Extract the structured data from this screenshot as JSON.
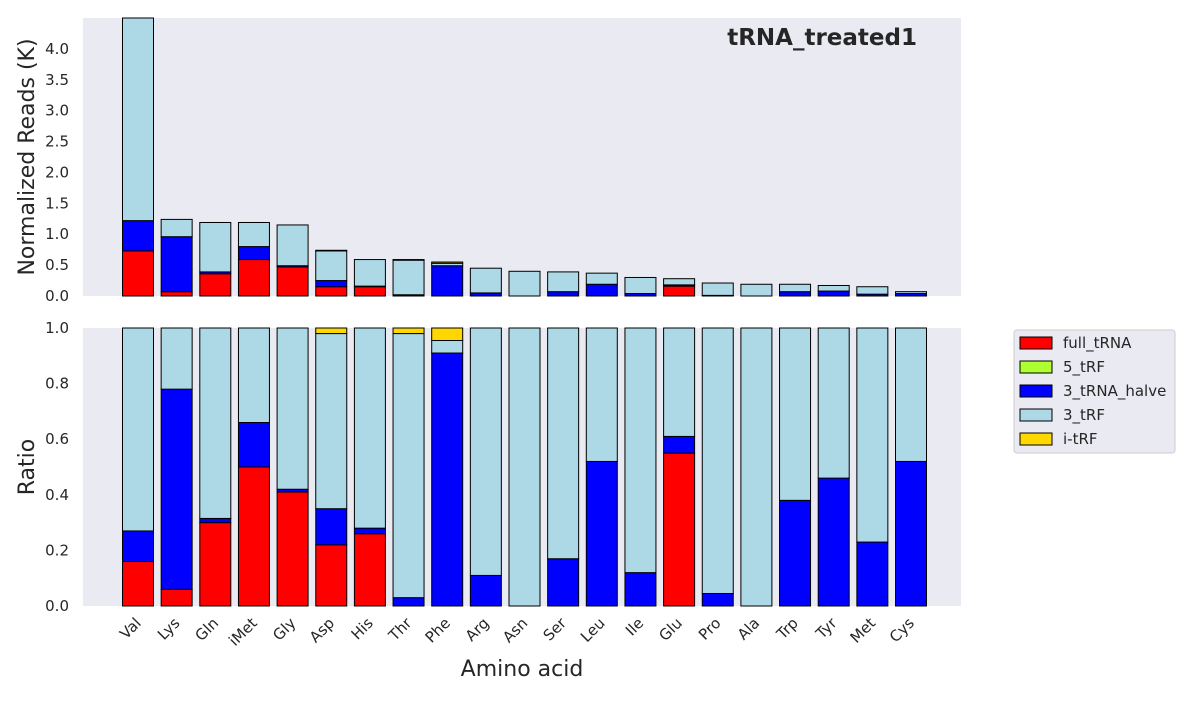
{
  "chart_data": {
    "type": "bar",
    "stacked": true,
    "title": "tRNA_treated1",
    "xlabel": "Amino acid",
    "categories": [
      "Val",
      "Lys",
      "Gln",
      "iMet",
      "Gly",
      "Asp",
      "His",
      "Thr",
      "Phe",
      "Arg",
      "Asn",
      "Ser",
      "Leu",
      "Ile",
      "Glu",
      "Pro",
      "Ala",
      "Trp",
      "Tyr",
      "Met",
      "Cys"
    ],
    "legend": {
      "placement": "outside-right",
      "entries": [
        "full_tRNA",
        "5_tRF",
        "3_tRNA_halve",
        "3_tRF",
        "i-tRF"
      ]
    },
    "colors": {
      "full_tRNA": "#ff0000",
      "5_tRF": "#adff2f",
      "3_tRNA_halve": "#0000ff",
      "3_tRF": "#add8e6",
      "i-tRF": "#ffd700",
      "panel_bg": "#eaeaf2"
    },
    "panels": [
      {
        "ylabel": "Normalized Reads (K)",
        "ylim": [
          0,
          4.5
        ],
        "yticks": [
          "0.0",
          "0.5",
          "1.0",
          "1.5",
          "2.0",
          "2.5",
          "3.0",
          "3.5",
          "4.0"
        ],
        "grid": false,
        "series": [
          {
            "name": "full_tRNA",
            "values": [
              0.73,
              0.07,
              0.36,
              0.59,
              0.47,
              0.15,
              0.15,
              0,
              0,
              0,
              0,
              0,
              0,
              0,
              0.16,
              0,
              0,
              0,
              0,
              0,
              0
            ]
          },
          {
            "name": "5_tRF",
            "values": [
              0,
              0,
              0,
              0,
              0,
              0,
              0,
              0,
              0,
              0,
              0,
              0,
              0,
              0,
              0,
              0,
              0,
              0,
              0,
              0,
              0
            ]
          },
          {
            "name": "3_tRNA_halve",
            "values": [
              0.49,
              0.89,
              0.03,
              0.21,
              0.02,
              0.1,
              0.01,
              0.02,
              0.49,
              0.05,
              0,
              0.07,
              0.19,
              0.04,
              0.02,
              0.01,
              0,
              0.07,
              0.08,
              0.03,
              0.04
            ]
          },
          {
            "name": "3_tRF",
            "values": [
              3.28,
              0.28,
              0.8,
              0.39,
              0.66,
              0.48,
              0.43,
              0.56,
              0.04,
              0.4,
              0.4,
              0.32,
              0.18,
              0.26,
              0.1,
              0.2,
              0.19,
              0.12,
              0.09,
              0.12,
              0.03
            ]
          },
          {
            "name": "i-tRF",
            "values": [
              0,
              0,
              0,
              0,
              0,
              0.01,
              0,
              0.01,
              0.02,
              0,
              0,
              0,
              0,
              0,
              0,
              0,
              0,
              0,
              0,
              0,
              0
            ]
          }
        ]
      },
      {
        "ylabel": "Ratio",
        "ylim": [
          0,
          1.0
        ],
        "yticks": [
          "0.0",
          "0.2",
          "0.4",
          "0.6",
          "0.8",
          "1.0"
        ],
        "grid": false,
        "series": [
          {
            "name": "full_tRNA",
            "values": [
              0.16,
              0.06,
              0.3,
              0.5,
              0.41,
              0.22,
              0.26,
              0,
              0,
              0,
              0,
              0,
              0,
              0,
              0.55,
              0,
              0,
              0,
              0,
              0,
              0
            ]
          },
          {
            "name": "5_tRF",
            "values": [
              0,
              0,
              0,
              0,
              0,
              0,
              0,
              0,
              0,
              0,
              0,
              0,
              0,
              0,
              0,
              0,
              0,
              0,
              0,
              0,
              0
            ]
          },
          {
            "name": "3_tRNA_halve",
            "values": [
              0.11,
              0.72,
              0.015,
              0.16,
              0.01,
              0.13,
              0.02,
              0.03,
              0.91,
              0.11,
              0,
              0.17,
              0.52,
              0.12,
              0.06,
              0.045,
              0,
              0.38,
              0.46,
              0.23,
              0.52
            ]
          },
          {
            "name": "3_tRF",
            "values": [
              0.73,
              0.22,
              0.685,
              0.34,
              0.58,
              0.63,
              0.72,
              0.95,
              0.045,
              0.89,
              1.0,
              0.83,
              0.48,
              0.88,
              0.39,
              0.955,
              1.0,
              0.62,
              0.54,
              0.77,
              0.48
            ]
          },
          {
            "name": "i-tRF",
            "values": [
              0,
              0,
              0,
              0,
              0,
              0.02,
              0,
              0.02,
              0.045,
              0,
              0,
              0,
              0,
              0,
              0,
              0,
              0,
              0,
              0,
              0,
              0
            ]
          }
        ]
      }
    ]
  }
}
